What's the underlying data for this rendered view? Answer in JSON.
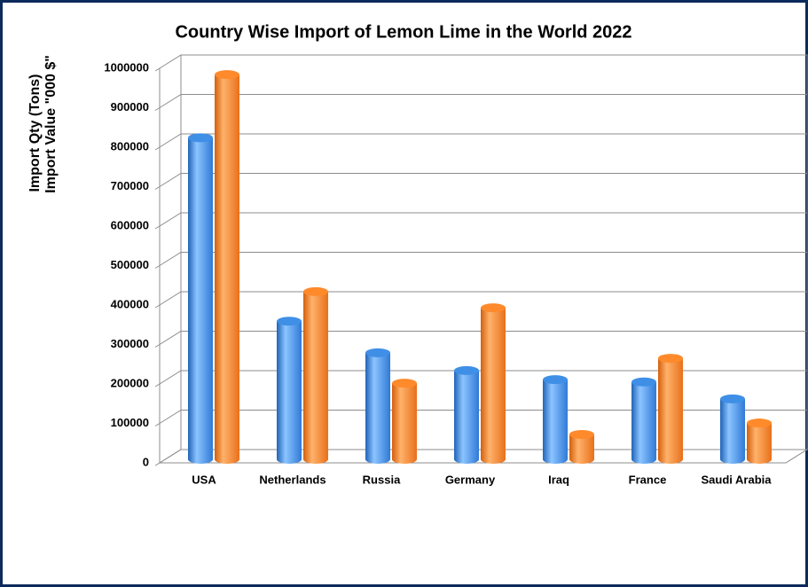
{
  "chart_data": {
    "type": "bar3d",
    "title": "Country Wise Import of Lemon Lime  in the World 2022",
    "y_label": [
      "Import Qty (Tons)",
      "Import Value \"000 $\""
    ],
    "categories": [
      "USA",
      "Netherlands",
      "Russia",
      "Germany",
      "Iraq",
      "France",
      "Saudi Arabia"
    ],
    "series": [
      {
        "color": "#3f8fe6",
        "values": [
          815000,
          350000,
          270000,
          225000,
          202000,
          196000,
          153000
        ]
      },
      {
        "color": "#ff8a2b",
        "values": [
          975000,
          425000,
          193000,
          384000,
          63000,
          256000,
          92000
        ]
      }
    ],
    "ylim": [
      0,
      1000000
    ],
    "yticks": [
      0,
      100000,
      200000,
      300000,
      400000,
      500000,
      600000,
      700000,
      800000,
      900000,
      1000000
    ],
    "grid": true
  }
}
